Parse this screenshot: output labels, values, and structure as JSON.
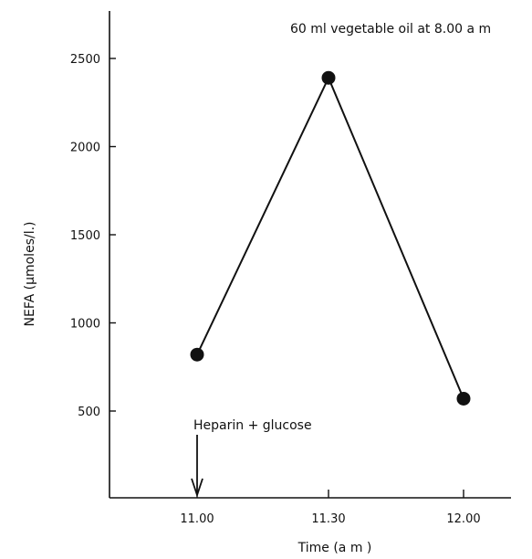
{
  "chart_data": {
    "type": "line",
    "title": "60 ml vegetable oil at 8.00 a m",
    "xlabel": "Time (a m )",
    "ylabel": "NEFA (μmoles/l.)",
    "categories": [
      "11.00",
      "11.30",
      "12.00"
    ],
    "series": [
      {
        "values": [
          820,
          2390,
          570
        ]
      }
    ],
    "yticks": [
      "500",
      "1000",
      "1500",
      "2000",
      "2500"
    ],
    "ylim": [
      0,
      2750
    ],
    "grid": false,
    "annotations": [
      {
        "text": "Heparin + glucose",
        "at": "11.00"
      }
    ]
  }
}
